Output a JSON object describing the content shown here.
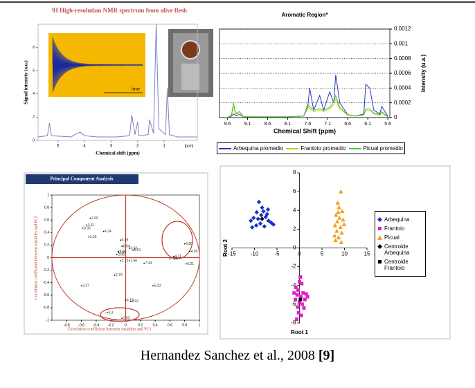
{
  "chart_data": [
    {
      "type": "line",
      "title": "¹H High-resolution NMR spectrum from olive flesh",
      "inset_label": "time",
      "xlabel": "Chemical shift (ppm)",
      "ylabel": "Signal intensity (a.u.)",
      "x_unit": "[ppm]",
      "xlim": [
        5.75,
        -0.25
      ],
      "xticks": [
        5,
        4,
        3,
        2,
        1
      ],
      "ylim": [
        0,
        10
      ],
      "yticks": [
        0,
        2,
        4,
        6,
        8
      ],
      "x": [
        5.75,
        5.4,
        5.32,
        5.25,
        4.5,
        4.3,
        4.15,
        4.0,
        3.5,
        2.8,
        2.3,
        2.22,
        2.1,
        2.0,
        1.95,
        1.6,
        1.55,
        1.4,
        1.3,
        1.2,
        0.95,
        0.88,
        0.8,
        0.5,
        -0.25
      ],
      "series": [
        {
          "color": "#7a80c0",
          "values": [
            0.3,
            0.4,
            1.5,
            0.4,
            0.3,
            0.6,
            0.7,
            0.4,
            0.3,
            0.3,
            0.4,
            2.2,
            0.5,
            1.6,
            0.4,
            0.5,
            1.8,
            0.6,
            10,
            1,
            0.5,
            4.5,
            0.5,
            0.3,
            0.3
          ]
        }
      ]
    },
    {
      "type": "line",
      "title": "Aromatic Region*",
      "xlabel": "Chemical Shift (ppm)",
      "ylabel": "intensity (u.a.)",
      "xlim": [
        9.8,
        5.55
      ],
      "xticks": [
        9.6,
        9.1,
        8.6,
        8.1,
        7.6,
        7.1,
        6.6,
        6.1,
        5.6
      ],
      "ylim": [
        0,
        0.0012
      ],
      "yticks": [
        0,
        0.0002,
        0.0004,
        0.0006,
        0.0008,
        0.001,
        0.0012
      ],
      "grid": true,
      "x": [
        9.6,
        9.5,
        9.45,
        9.4,
        9.3,
        9.2,
        9.0,
        8.6,
        8.1,
        7.7,
        7.6,
        7.55,
        7.45,
        7.3,
        7.2,
        7.05,
        6.95,
        6.9,
        6.8,
        6.6,
        6.4,
        6.2,
        6.15,
        6.05,
        5.95,
        5.8,
        5.75,
        5.6
      ],
      "series": [
        {
          "name": "Arbequina promedio",
          "color": "#2a35c0",
          "values": [
            0,
            2e-05,
            5e-05,
            3e-05,
            4e-05,
            1e-05,
            1e-05,
            1e-05,
            1e-05,
            2e-05,
            0.00013,
            0.0004,
            0.0001,
            0.0003,
            0.0001,
            0.00035,
            0.0002,
            0.00058,
            0.0002,
            4e-05,
            2e-05,
            5e-05,
            0.00045,
            0.0004,
            0.0001,
            5e-05,
            0.00015,
            2e-05
          ]
        },
        {
          "name": "Frantoio promedio",
          "color": "#c8c800",
          "values": [
            0,
            3e-05,
            0.00015,
            5e-05,
            6e-05,
            1e-05,
            1e-05,
            1e-05,
            1e-05,
            2e-05,
            0.00015,
            0.00012,
            8e-05,
            0.0001,
            8e-05,
            0.00012,
            0.00018,
            0.00025,
            0.00012,
            3e-05,
            2e-05,
            3e-05,
            0.0001,
            0.0001,
            5e-05,
            3e-05,
            6e-05,
            1e-05
          ]
        },
        {
          "name": "Picual promedio",
          "color": "#3ccc3c",
          "values": [
            0,
            4e-05,
            0.0002,
            6e-05,
            8e-05,
            1e-05,
            1e-05,
            1e-05,
            1e-05,
            2e-05,
            0.00018,
            0.00015,
            0.0001,
            0.00012,
            0.0001,
            0.00014,
            0.00022,
            0.0003,
            0.00014,
            4e-05,
            2e-05,
            4e-05,
            0.00012,
            0.00012,
            6e-05,
            4e-05,
            8e-05,
            1e-05
          ]
        }
      ]
    },
    {
      "type": "scatter",
      "header": "Principal Component Analysis",
      "xlabel": "Correlation coefficient between variables and PC1",
      "ylabel": "Correlation coefficient between variables and PC2",
      "xlim": [
        -1,
        1
      ],
      "ylim": [
        -1,
        1
      ],
      "xticks": [
        -0.8,
        -0.6,
        -0.4,
        -0.2,
        0,
        0.2,
        0.4,
        0.6,
        0.8,
        1
      ],
      "yticks": [
        1,
        0.8,
        0.6,
        0.4,
        0.2,
        0,
        -0.2,
        -0.4,
        -0.6,
        -0.8,
        -1
      ],
      "color": "#c0392b",
      "points": {
        "labels": [
          "2.99",
          "3.61",
          "3.92",
          "4.34",
          "3.35",
          "6.89",
          "6.94",
          "6.03",
          "5.61",
          "2.64",
          "2.98",
          "2.05",
          "2.12",
          "1.96",
          "7.43",
          "2.79",
          "2.27",
          "5.23",
          "4.10",
          "5.02",
          "4.3",
          "1.53",
          "6.88",
          "6.01",
          "4.71",
          "4.05",
          "7.06"
        ],
        "x": [
          -0.48,
          -0.53,
          -0.58,
          -0.3,
          -0.5,
          -0.07,
          -0.05,
          0.05,
          0.1,
          -0.1,
          -0.1,
          -0.12,
          -0.07,
          0.05,
          0.25,
          -0.15,
          -0.6,
          0.37,
          0,
          0.07,
          -0.25,
          -0.05,
          0.8,
          0.82,
          0.65,
          0.87,
          0.6
        ],
        "y": [
          0.63,
          0.52,
          0.47,
          0.42,
          0.33,
          0.28,
          0.18,
          0.15,
          0.12,
          0.1,
          0.08,
          0.05,
          -0.05,
          -0.05,
          -0.09,
          -0.28,
          -0.45,
          -0.45,
          -0.68,
          -0.7,
          -0.88,
          -0.97,
          0.22,
          -0.1,
          0.02,
          0.1,
          -0.02
        ]
      }
    },
    {
      "type": "scatter",
      "xlabel": "Root 1",
      "ylabel": "Root 2",
      "xlim": [
        -15,
        15
      ],
      "ylim": [
        -8,
        8
      ],
      "xticks": [
        -15,
        -10,
        -5,
        0,
        5,
        10,
        15
      ],
      "yticks": [
        -8,
        -6,
        -4,
        -2,
        0,
        2,
        4,
        6,
        8
      ],
      "series": [
        {
          "name": "Arbequina",
          "color": "#1c2fc8",
          "marker": "diamond",
          "x": [
            -9,
            -9.5,
            -10.2,
            -10.8,
            -8.5,
            -8,
            -7.5,
            -7.2,
            -6.9,
            -8.7,
            -9.6,
            -10.5,
            -7.8,
            -6.3,
            -5.8,
            -8.3,
            -9.2,
            -7
          ],
          "values": [
            4.9,
            3.8,
            3.2,
            2.9,
            3.5,
            3.9,
            3.3,
            3.6,
            2.9,
            2.6,
            2.4,
            2.2,
            2.3,
            2.7,
            2.5,
            4.3,
            3.1,
            4.1
          ]
        },
        {
          "name": "Frantoio",
          "color": "#e020c8",
          "marker": "square",
          "x": [
            0,
            0.5,
            -0.8,
            -0.3,
            0.8,
            1.5,
            -0.5,
            0.3,
            1.2,
            -0.9,
            0,
            0.6,
            -0.4,
            1,
            -0.2,
            0.4,
            -0.6,
            0.2,
            -1.2,
            1.8
          ],
          "values": [
            -3.6,
            -3.8,
            -4.2,
            -4.5,
            -4.8,
            -4.9,
            -5,
            -5.2,
            -5.5,
            -5.5,
            -5.8,
            -6,
            -6.3,
            -6.4,
            -6.9,
            -7.2,
            -7.6,
            -3.1,
            -4.8,
            -5.2
          ]
        },
        {
          "name": "Picual",
          "color": "#f0a020",
          "marker": "triangle",
          "x": [
            9.2,
            8.5,
            8.8,
            9.5,
            8.1,
            8.9,
            9.7,
            8.4,
            7.9,
            9.1,
            8.3,
            9.4,
            7.8,
            8.7,
            9.9,
            8,
            9.3,
            8.6
          ],
          "values": [
            6,
            4.8,
            4.3,
            3.9,
            3.5,
            3.2,
            3,
            2.8,
            2.4,
            2.2,
            1.8,
            1.6,
            1.3,
            1.1,
            2.5,
            0.8,
            0.6,
            3.8
          ]
        },
        {
          "name": "Centroide Arbequina",
          "color": "#000000",
          "marker": "diamond",
          "x": [
            -8.3
          ],
          "values": [
            3.1
          ]
        },
        {
          "name": "Centroide Frantoio",
          "color": "#000000",
          "marker": "square",
          "x": [
            0.2
          ],
          "values": [
            -5.5
          ]
        }
      ]
    }
  ],
  "caption": {
    "text": "Hernandez Sanchez et al., 2008",
    "ref": "[9]"
  }
}
